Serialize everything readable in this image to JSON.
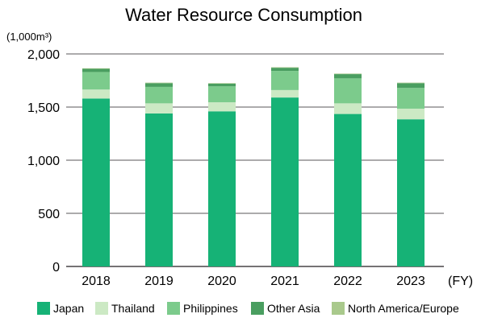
{
  "chart_data": {
    "type": "bar",
    "stacked": true,
    "title": "Water Resource Consumption",
    "y_unit": "(1,000m³)",
    "x_unit": "(FY)",
    "categories": [
      "2018",
      "2019",
      "2020",
      "2021",
      "2022",
      "2023"
    ],
    "ylim": [
      0,
      2000
    ],
    "yticks": [
      0,
      500,
      1000,
      1500,
      2000
    ],
    "ytick_labels": [
      "0",
      "500",
      "1,000",
      "1,500",
      "2,000"
    ],
    "grid": true,
    "legend_position": "bottom",
    "series": [
      {
        "name": "Japan",
        "color": "#16b276",
        "values": [
          1580,
          1440,
          1460,
          1590,
          1435,
          1385
        ]
      },
      {
        "name": "Thailand",
        "color": "#cce9c4",
        "values": [
          85,
          95,
          85,
          70,
          100,
          100
        ]
      },
      {
        "name": "Philippines",
        "color": "#7ccb8c",
        "values": [
          165,
          155,
          150,
          180,
          235,
          195
        ]
      },
      {
        "name": "Other Asia",
        "color": "#4a9e60",
        "values": [
          30,
          35,
          25,
          30,
          40,
          45
        ]
      },
      {
        "name": "North America/Europe",
        "color": "#a9c98c",
        "values": [
          5,
          5,
          5,
          5,
          5,
          5
        ]
      }
    ]
  }
}
